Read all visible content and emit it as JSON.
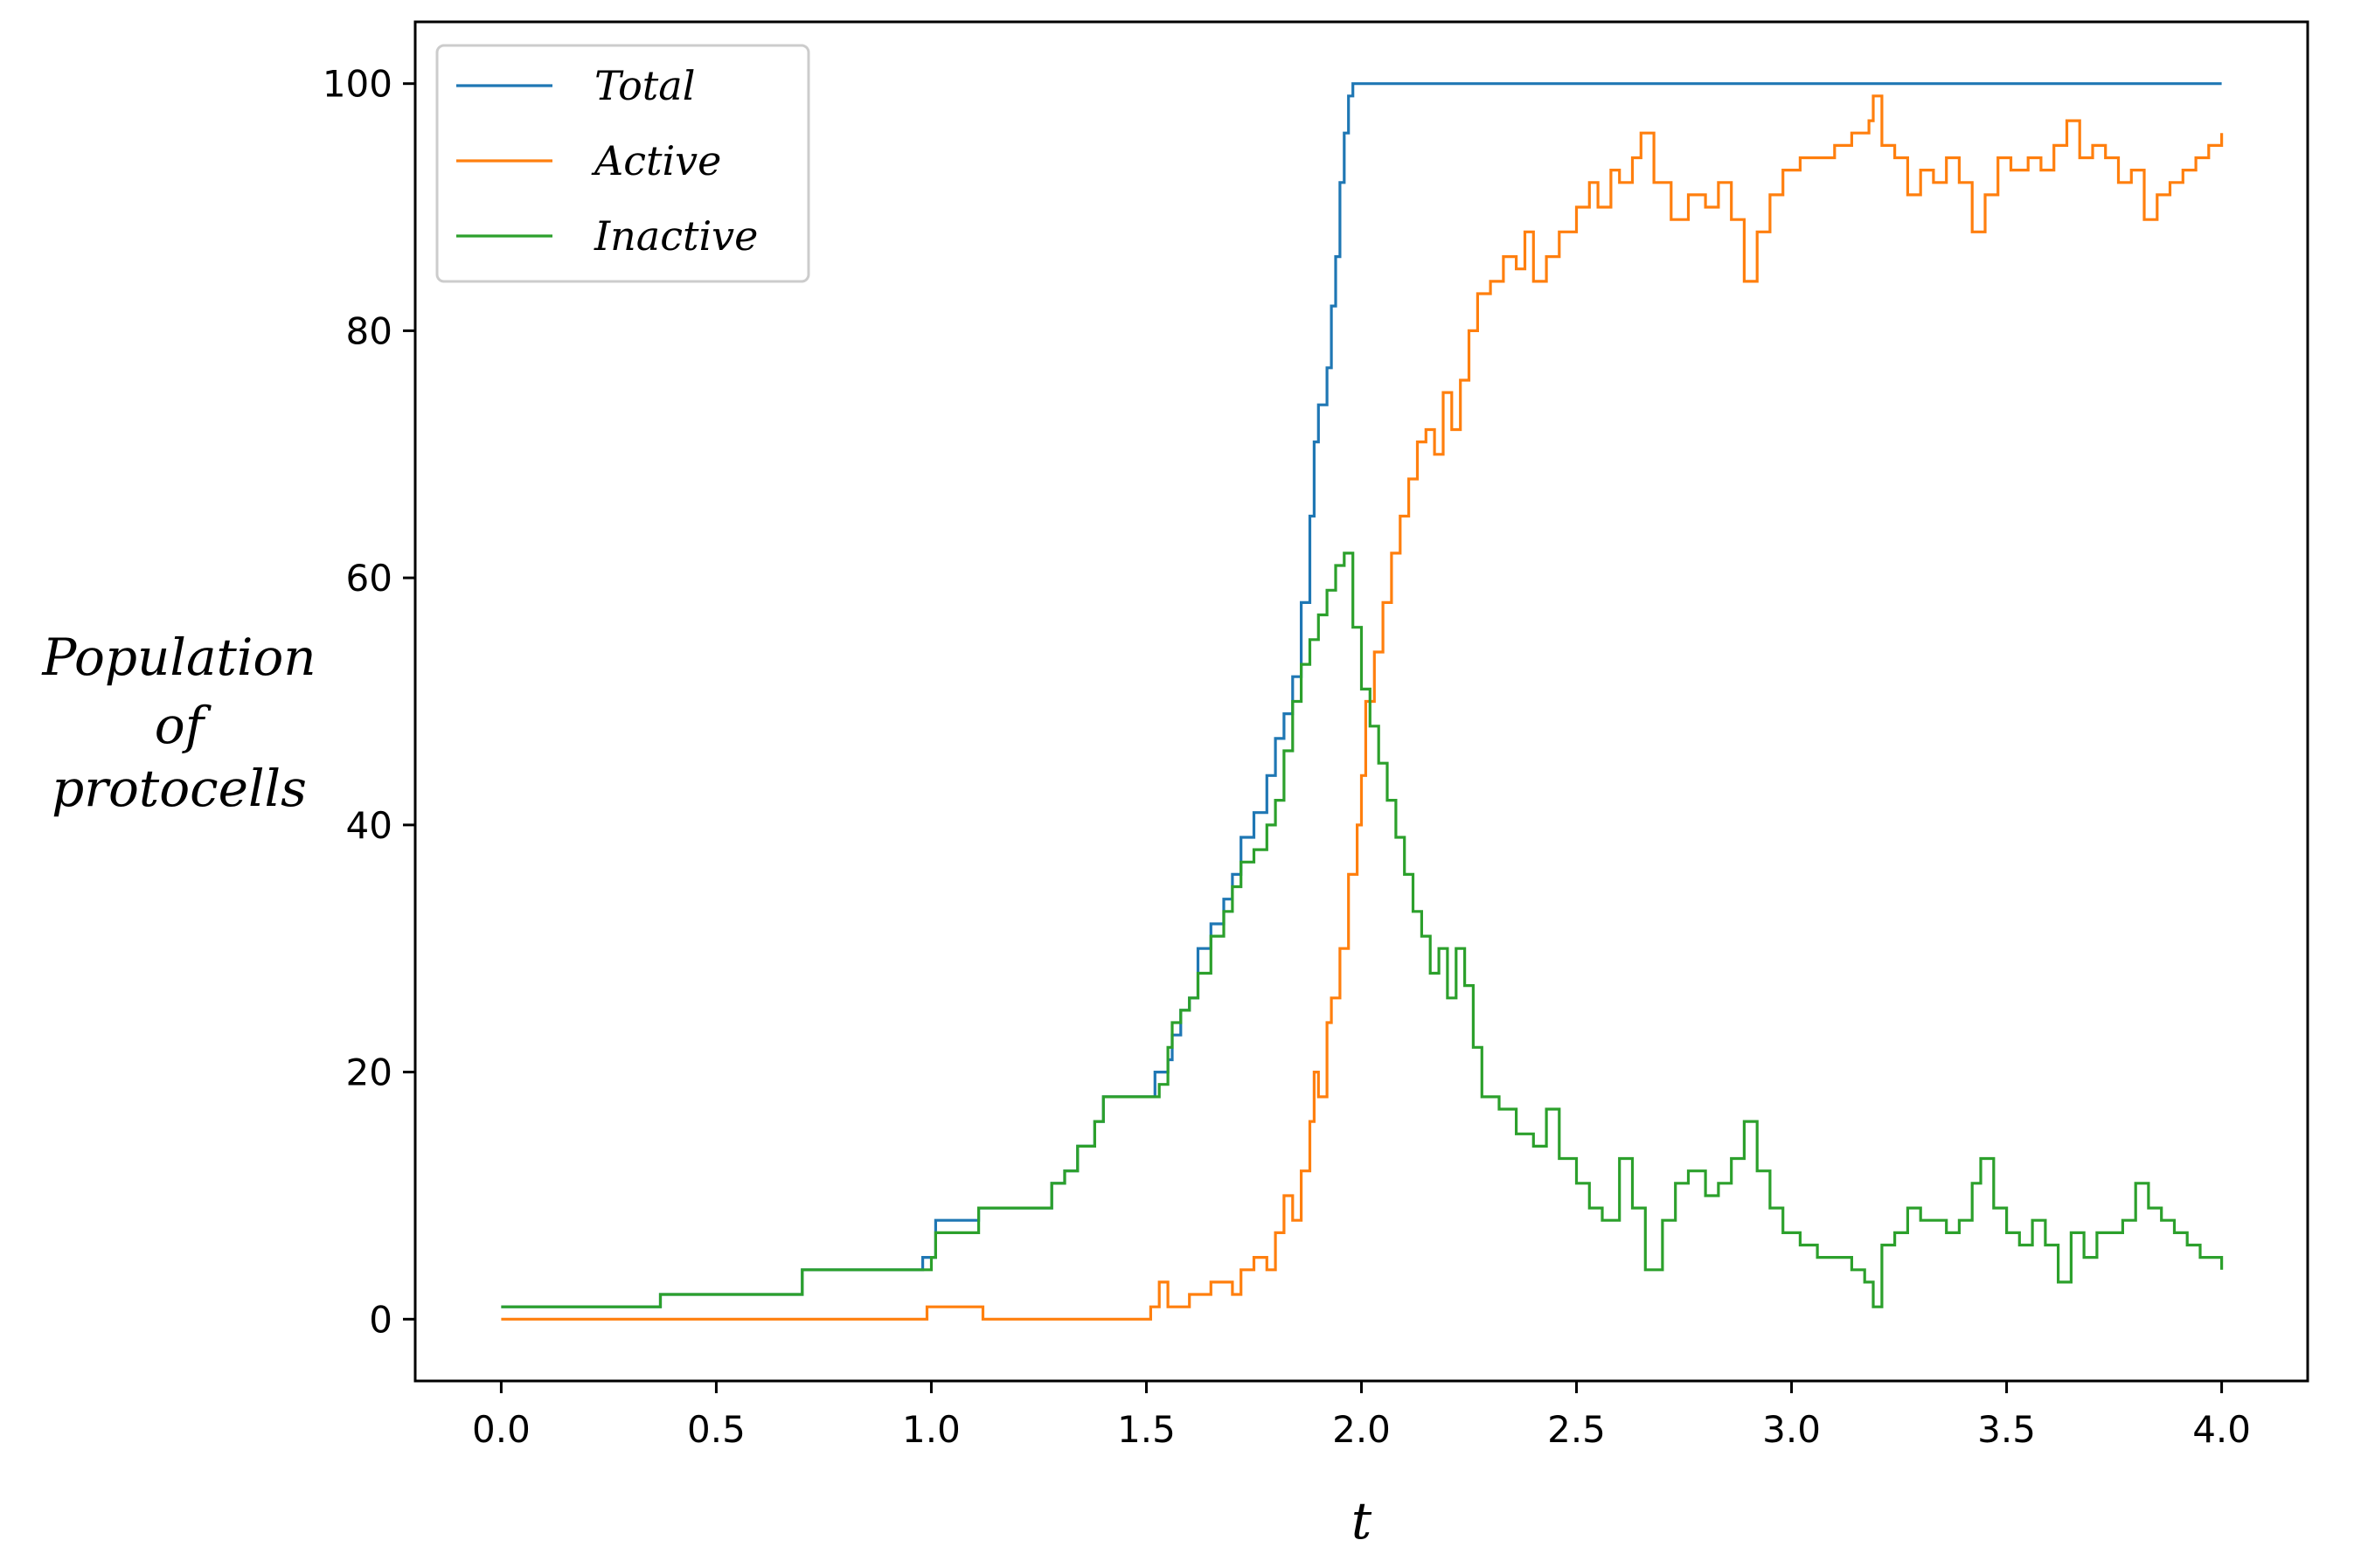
{
  "chart_data": {
    "type": "line",
    "title": "",
    "xlabel": "t",
    "ylabel_lines": [
      "Population",
      "of",
      "protocells"
    ],
    "xlim": [
      -0.2,
      4.2
    ],
    "ylim": [
      -5,
      105
    ],
    "xticks": [
      0.0,
      0.5,
      1.0,
      1.5,
      2.0,
      2.5,
      3.0,
      3.5,
      4.0
    ],
    "xtick_labels": [
      "0.0",
      "0.5",
      "1.0",
      "1.5",
      "2.0",
      "2.5",
      "3.0",
      "3.5",
      "4.0"
    ],
    "yticks": [
      0,
      20,
      40,
      60,
      80,
      100
    ],
    "ytick_labels": [
      "0",
      "20",
      "40",
      "60",
      "80",
      "100"
    ],
    "grid": false,
    "legend_position": "top-left",
    "series": [
      {
        "name": "Total",
        "color": "#1f77b4",
        "step": true,
        "points": [
          [
            0.0,
            1
          ],
          [
            0.37,
            1
          ],
          [
            0.37,
            2
          ],
          [
            0.7,
            2
          ],
          [
            0.7,
            4
          ],
          [
            0.98,
            4
          ],
          [
            0.98,
            5
          ],
          [
            1.0,
            5
          ],
          [
            1.01,
            8
          ],
          [
            1.11,
            8
          ],
          [
            1.11,
            9
          ],
          [
            1.25,
            9
          ],
          [
            1.28,
            11
          ],
          [
            1.31,
            12
          ],
          [
            1.34,
            14
          ],
          [
            1.38,
            16
          ],
          [
            1.4,
            18
          ],
          [
            1.52,
            18
          ],
          [
            1.52,
            20
          ],
          [
            1.55,
            21
          ],
          [
            1.56,
            23
          ],
          [
            1.58,
            25
          ],
          [
            1.6,
            26
          ],
          [
            1.62,
            30
          ],
          [
            1.65,
            32
          ],
          [
            1.68,
            34
          ],
          [
            1.7,
            36
          ],
          [
            1.72,
            39
          ],
          [
            1.75,
            41
          ],
          [
            1.78,
            44
          ],
          [
            1.8,
            47
          ],
          [
            1.82,
            49
          ],
          [
            1.84,
            52
          ],
          [
            1.86,
            58
          ],
          [
            1.88,
            65
          ],
          [
            1.89,
            71
          ],
          [
            1.9,
            74
          ],
          [
            1.92,
            77
          ],
          [
            1.93,
            82
          ],
          [
            1.94,
            86
          ],
          [
            1.95,
            92
          ],
          [
            1.96,
            96
          ],
          [
            1.97,
            99
          ],
          [
            1.98,
            100
          ],
          [
            4.0,
            100
          ]
        ]
      },
      {
        "name": "Active",
        "color": "#ff7f0e",
        "step": true,
        "points": [
          [
            0.0,
            0
          ],
          [
            0.98,
            0
          ],
          [
            0.99,
            1
          ],
          [
            1.11,
            1
          ],
          [
            1.12,
            0
          ],
          [
            1.5,
            0
          ],
          [
            1.51,
            1
          ],
          [
            1.53,
            3
          ],
          [
            1.55,
            1
          ],
          [
            1.6,
            2
          ],
          [
            1.65,
            3
          ],
          [
            1.7,
            2
          ],
          [
            1.72,
            4
          ],
          [
            1.75,
            5
          ],
          [
            1.78,
            4
          ],
          [
            1.8,
            7
          ],
          [
            1.82,
            10
          ],
          [
            1.84,
            8
          ],
          [
            1.86,
            12
          ],
          [
            1.88,
            16
          ],
          [
            1.89,
            20
          ],
          [
            1.9,
            18
          ],
          [
            1.92,
            24
          ],
          [
            1.93,
            26
          ],
          [
            1.95,
            30
          ],
          [
            1.97,
            36
          ],
          [
            1.99,
            40
          ],
          [
            2.0,
            44
          ],
          [
            2.01,
            50
          ],
          [
            2.03,
            54
          ],
          [
            2.05,
            58
          ],
          [
            2.07,
            62
          ],
          [
            2.09,
            65
          ],
          [
            2.11,
            68
          ],
          [
            2.13,
            71
          ],
          [
            2.15,
            72
          ],
          [
            2.17,
            70
          ],
          [
            2.19,
            75
          ],
          [
            2.21,
            72
          ],
          [
            2.23,
            76
          ],
          [
            2.25,
            80
          ],
          [
            2.27,
            83
          ],
          [
            2.3,
            84
          ],
          [
            2.33,
            86
          ],
          [
            2.36,
            85
          ],
          [
            2.38,
            88
          ],
          [
            2.4,
            84
          ],
          [
            2.43,
            86
          ],
          [
            2.46,
            88
          ],
          [
            2.5,
            90
          ],
          [
            2.53,
            92
          ],
          [
            2.55,
            90
          ],
          [
            2.58,
            93
          ],
          [
            2.6,
            92
          ],
          [
            2.63,
            94
          ],
          [
            2.65,
            96
          ],
          [
            2.68,
            92
          ],
          [
            2.72,
            89
          ],
          [
            2.76,
            91
          ],
          [
            2.8,
            90
          ],
          [
            2.83,
            92
          ],
          [
            2.86,
            89
          ],
          [
            2.89,
            84
          ],
          [
            2.92,
            88
          ],
          [
            2.95,
            91
          ],
          [
            2.98,
            93
          ],
          [
            3.02,
            94
          ],
          [
            3.06,
            94
          ],
          [
            3.1,
            95
          ],
          [
            3.14,
            96
          ],
          [
            3.18,
            97
          ],
          [
            3.19,
            99
          ],
          [
            3.21,
            95
          ],
          [
            3.24,
            94
          ],
          [
            3.27,
            91
          ],
          [
            3.3,
            93
          ],
          [
            3.33,
            92
          ],
          [
            3.36,
            94
          ],
          [
            3.39,
            92
          ],
          [
            3.42,
            88
          ],
          [
            3.45,
            91
          ],
          [
            3.48,
            94
          ],
          [
            3.51,
            93
          ],
          [
            3.55,
            94
          ],
          [
            3.58,
            93
          ],
          [
            3.61,
            95
          ],
          [
            3.64,
            97
          ],
          [
            3.67,
            94
          ],
          [
            3.7,
            95
          ],
          [
            3.73,
            94
          ],
          [
            3.76,
            92
          ],
          [
            3.79,
            93
          ],
          [
            3.82,
            89
          ],
          [
            3.85,
            91
          ],
          [
            3.88,
            92
          ],
          [
            3.91,
            93
          ],
          [
            3.94,
            94
          ],
          [
            3.97,
            95
          ],
          [
            4.0,
            96
          ]
        ]
      },
      {
        "name": "Inactive",
        "color": "#2ca02c",
        "step": true,
        "points": [
          [
            0.0,
            1
          ],
          [
            0.37,
            1
          ],
          [
            0.37,
            2
          ],
          [
            0.7,
            2
          ],
          [
            0.7,
            4
          ],
          [
            0.98,
            4
          ],
          [
            1.0,
            5
          ],
          [
            1.01,
            7
          ],
          [
            1.11,
            7
          ],
          [
            1.11,
            9
          ],
          [
            1.25,
            9
          ],
          [
            1.28,
            11
          ],
          [
            1.31,
            12
          ],
          [
            1.34,
            14
          ],
          [
            1.38,
            16
          ],
          [
            1.4,
            18
          ],
          [
            1.52,
            18
          ],
          [
            1.53,
            19
          ],
          [
            1.55,
            22
          ],
          [
            1.56,
            24
          ],
          [
            1.58,
            25
          ],
          [
            1.6,
            26
          ],
          [
            1.62,
            28
          ],
          [
            1.65,
            31
          ],
          [
            1.68,
            33
          ],
          [
            1.7,
            35
          ],
          [
            1.72,
            37
          ],
          [
            1.75,
            38
          ],
          [
            1.78,
            40
          ],
          [
            1.8,
            42
          ],
          [
            1.82,
            46
          ],
          [
            1.84,
            50
          ],
          [
            1.86,
            53
          ],
          [
            1.88,
            55
          ],
          [
            1.9,
            57
          ],
          [
            1.92,
            59
          ],
          [
            1.94,
            61
          ],
          [
            1.96,
            62
          ],
          [
            1.98,
            56
          ],
          [
            2.0,
            51
          ],
          [
            2.02,
            48
          ],
          [
            2.04,
            45
          ],
          [
            2.06,
            42
          ],
          [
            2.08,
            39
          ],
          [
            2.1,
            36
          ],
          [
            2.12,
            33
          ],
          [
            2.14,
            31
          ],
          [
            2.16,
            28
          ],
          [
            2.18,
            30
          ],
          [
            2.2,
            26
          ],
          [
            2.22,
            30
          ],
          [
            2.24,
            27
          ],
          [
            2.26,
            22
          ],
          [
            2.28,
            18
          ],
          [
            2.32,
            17
          ],
          [
            2.36,
            15
          ],
          [
            2.4,
            14
          ],
          [
            2.43,
            17
          ],
          [
            2.46,
            13
          ],
          [
            2.5,
            11
          ],
          [
            2.53,
            9
          ],
          [
            2.56,
            8
          ],
          [
            2.6,
            13
          ],
          [
            2.63,
            9
          ],
          [
            2.66,
            4
          ],
          [
            2.7,
            8
          ],
          [
            2.73,
            11
          ],
          [
            2.76,
            12
          ],
          [
            2.8,
            10
          ],
          [
            2.83,
            11
          ],
          [
            2.86,
            13
          ],
          [
            2.89,
            16
          ],
          [
            2.92,
            12
          ],
          [
            2.95,
            9
          ],
          [
            2.98,
            7
          ],
          [
            3.02,
            6
          ],
          [
            3.06,
            5
          ],
          [
            3.1,
            5
          ],
          [
            3.14,
            4
          ],
          [
            3.17,
            3
          ],
          [
            3.19,
            1
          ],
          [
            3.21,
            6
          ],
          [
            3.24,
            7
          ],
          [
            3.27,
            9
          ],
          [
            3.3,
            8
          ],
          [
            3.33,
            8
          ],
          [
            3.36,
            7
          ],
          [
            3.39,
            8
          ],
          [
            3.42,
            11
          ],
          [
            3.44,
            13
          ],
          [
            3.47,
            9
          ],
          [
            3.5,
            7
          ],
          [
            3.53,
            6
          ],
          [
            3.56,
            8
          ],
          [
            3.59,
            6
          ],
          [
            3.62,
            3
          ],
          [
            3.65,
            7
          ],
          [
            3.68,
            5
          ],
          [
            3.71,
            7
          ],
          [
            3.74,
            7
          ],
          [
            3.77,
            8
          ],
          [
            3.8,
            11
          ],
          [
            3.83,
            9
          ],
          [
            3.86,
            8
          ],
          [
            3.89,
            7
          ],
          [
            3.92,
            6
          ],
          [
            3.95,
            5
          ],
          [
            3.98,
            5
          ],
          [
            4.0,
            4
          ]
        ]
      }
    ]
  }
}
